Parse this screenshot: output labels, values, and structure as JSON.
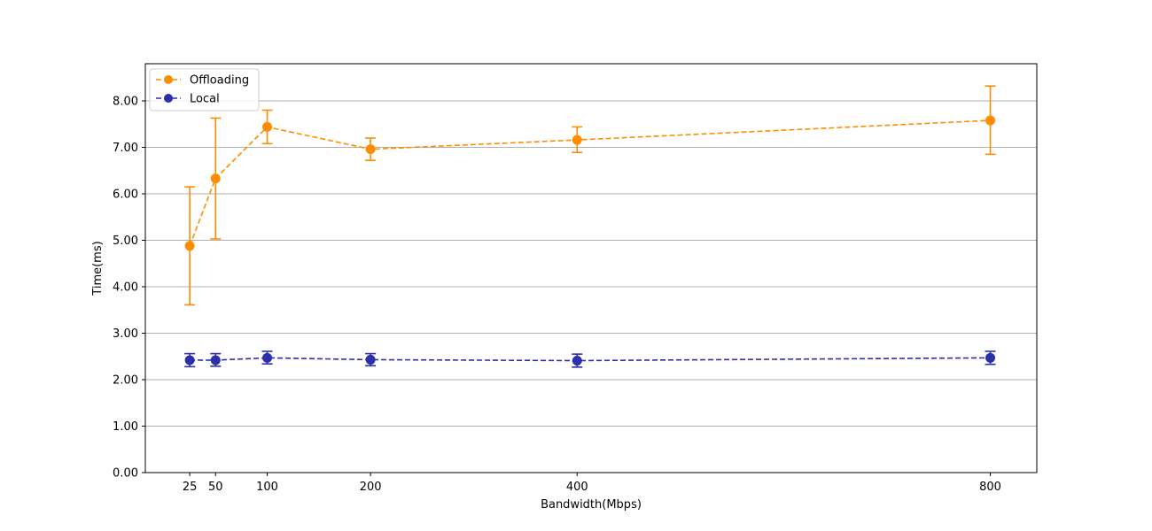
{
  "chart_data": {
    "type": "line",
    "xlabel": "Bandwidth(Mbps)",
    "ylabel": "Time(ms)",
    "x": [
      25,
      50,
      100,
      200,
      400,
      800
    ],
    "xticks": [
      "25",
      "50",
      "100",
      "200",
      "400",
      "800"
    ],
    "xlim": [
      -18,
      845
    ],
    "ylim": [
      0,
      8.8
    ],
    "yticks": [
      "0.00",
      "1.00",
      "2.00",
      "3.00",
      "4.00",
      "5.00",
      "6.00",
      "7.00",
      "8.00"
    ],
    "grid": "horizontal",
    "legend_position": "top-left",
    "line_style": "dashed",
    "series": [
      {
        "name": "Offloading",
        "color": "#ff8c00",
        "values": [
          4.88,
          6.33,
          7.44,
          6.96,
          7.16,
          7.58
        ],
        "error_low": [
          3.61,
          5.03,
          7.08,
          6.72,
          6.89,
          6.85
        ],
        "error_high": [
          6.15,
          7.63,
          7.8,
          7.2,
          7.44,
          8.32
        ]
      },
      {
        "name": "Local",
        "color": "#2b2faa",
        "values": [
          2.42,
          2.42,
          2.47,
          2.43,
          2.41,
          2.47
        ],
        "error_low": [
          2.28,
          2.29,
          2.34,
          2.3,
          2.27,
          2.33
        ],
        "error_high": [
          2.56,
          2.56,
          2.61,
          2.56,
          2.55,
          2.61
        ]
      }
    ]
  }
}
